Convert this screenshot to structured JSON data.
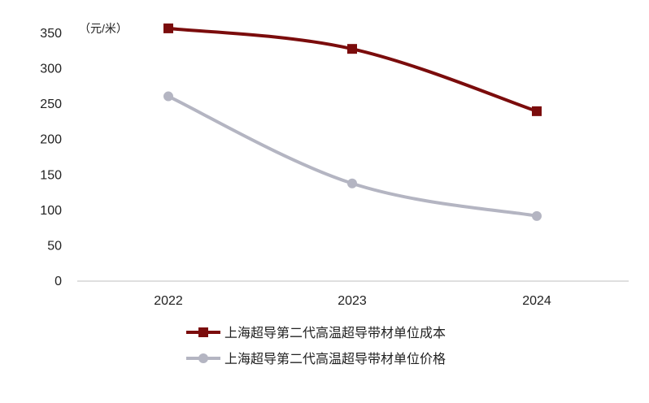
{
  "chart_data": {
    "type": "line",
    "unit_label": "（元/米）",
    "categories": [
      "2022",
      "2023",
      "2024"
    ],
    "ylim": [
      0,
      350
    ],
    "yticks": [
      0,
      50,
      100,
      150,
      200,
      250,
      300,
      350
    ],
    "grid": false,
    "legend_position": "bottom",
    "series": [
      {
        "name": "上海超导第二代高温超导带材单位成本",
        "values": [
          357,
          328,
          240
        ],
        "color": "#7B0C0C",
        "marker": "square"
      },
      {
        "name": "上海超导第二代高温超导带材单位价格",
        "values": [
          261,
          138,
          92
        ],
        "color": "#B4B5C2",
        "marker": "circle"
      }
    ]
  }
}
